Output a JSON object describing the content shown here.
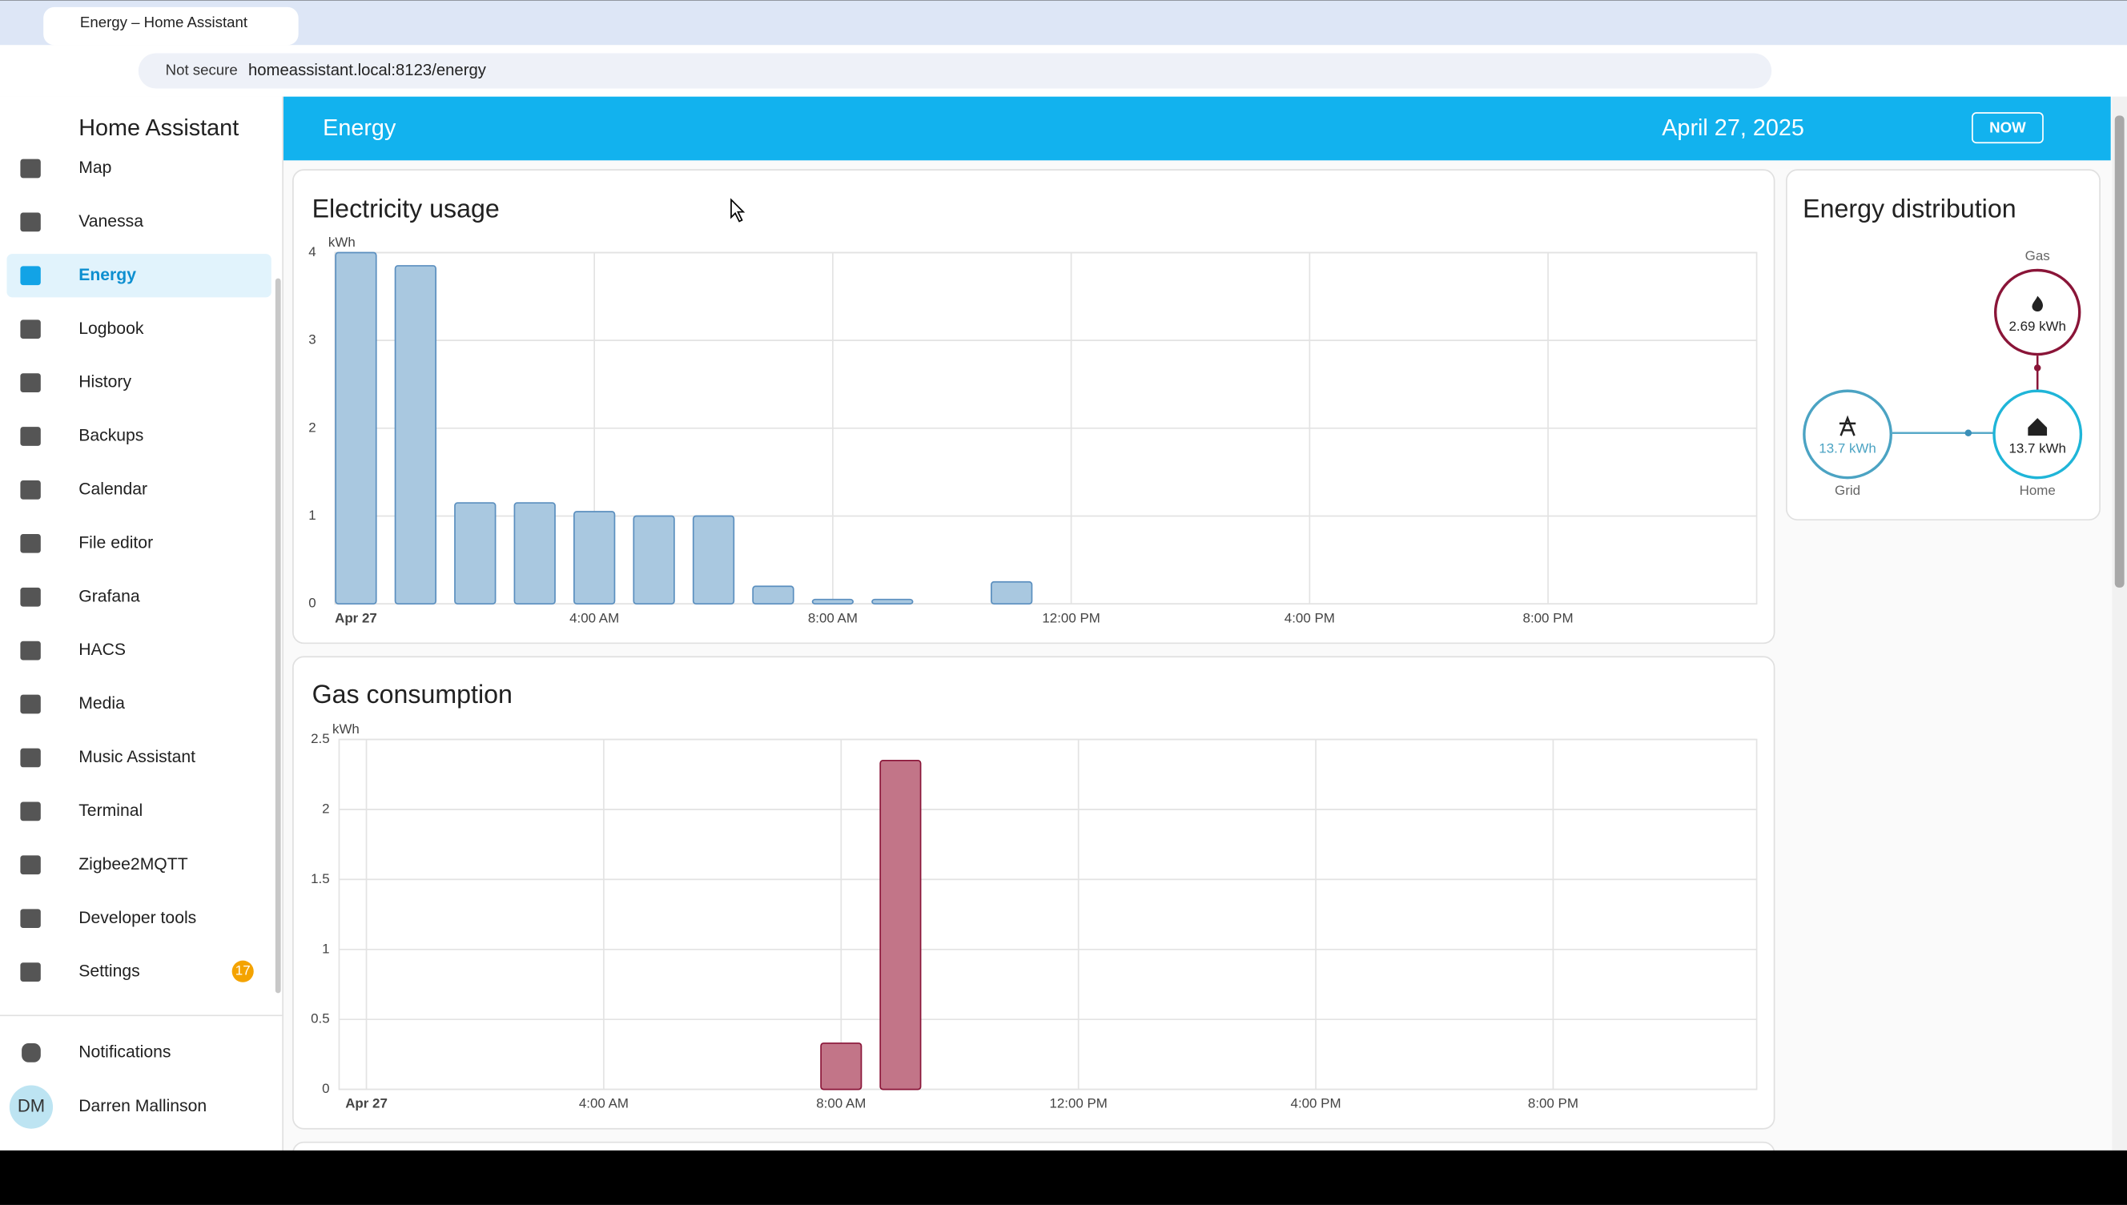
{
  "browser": {
    "tab_title": "Energy – Home Assistant",
    "security": "Not secure",
    "url": "homeassistant.local:8123/energy"
  },
  "sidebar": {
    "title": "Home Assistant",
    "items": [
      "Map",
      "Vanessa",
      "Energy",
      "Logbook",
      "History",
      "Backups",
      "Calendar",
      "File editor",
      "Grafana",
      "HACS",
      "Media",
      "Music Assistant",
      "Terminal",
      "Zigbee2MQTT",
      "Developer tools",
      "Settings"
    ],
    "settings_badge": "17",
    "notifications": "Notifications",
    "user": {
      "initials": "DM",
      "name": "Darren Mallinson"
    }
  },
  "header": {
    "title": "Energy",
    "date": "April 27, 2025",
    "now_button": "NOW"
  },
  "distribution": {
    "title": "Energy distribution",
    "gas": {
      "label": "Gas",
      "value": "2.69 kWh"
    },
    "grid": {
      "label": "Grid",
      "value": "13.7 kWh"
    },
    "home": {
      "label": "Home",
      "value": "13.7 kWh"
    }
  },
  "chart_data": [
    {
      "type": "bar",
      "title": "Electricity usage",
      "y_label": "kWh",
      "x": [
        0,
        1,
        2,
        3,
        4,
        5,
        6,
        7,
        8,
        9,
        10,
        11
      ],
      "values": [
        4.0,
        3.85,
        1.15,
        1.15,
        1.05,
        1.0,
        1.0,
        0.2,
        0.05,
        0.05,
        0,
        0.25
      ],
      "color": "#a9c8e0",
      "edge_color": "#5b8fbf",
      "xlim": [
        -0.35,
        23.5
      ],
      "ylim": [
        0,
        4
      ],
      "xticks": [
        {
          "value": 0,
          "label": "Apr 27"
        },
        {
          "value": 4,
          "label": "4:00 AM"
        },
        {
          "value": 8,
          "label": "8:00 AM"
        },
        {
          "value": 12,
          "label": "12:00 PM"
        },
        {
          "value": 16,
          "label": "4:00 PM"
        },
        {
          "value": 20,
          "label": "8:00 PM"
        }
      ],
      "yticks": [
        0,
        1,
        2,
        3,
        4
      ],
      "grid": true
    },
    {
      "type": "bar",
      "title": "Gas consumption",
      "y_label": "kWh",
      "x": [
        8,
        9
      ],
      "values": [
        0.33,
        2.35
      ],
      "color": "#c27588",
      "edge_color": "#8a1538",
      "xlim": [
        -0.46,
        23.43
      ],
      "ylim": [
        0,
        2.5
      ],
      "xticks": [
        {
          "value": 0,
          "label": "Apr 27"
        },
        {
          "value": 4,
          "label": "4:00 AM"
        },
        {
          "value": 8,
          "label": "8:00 AM"
        },
        {
          "value": 12,
          "label": "12:00 PM"
        },
        {
          "value": 16,
          "label": "4:00 PM"
        },
        {
          "value": 20,
          "label": "8:00 PM"
        }
      ],
      "yticks": [
        0,
        0.5,
        1,
        1.5,
        2,
        2.5
      ],
      "grid": true
    }
  ]
}
